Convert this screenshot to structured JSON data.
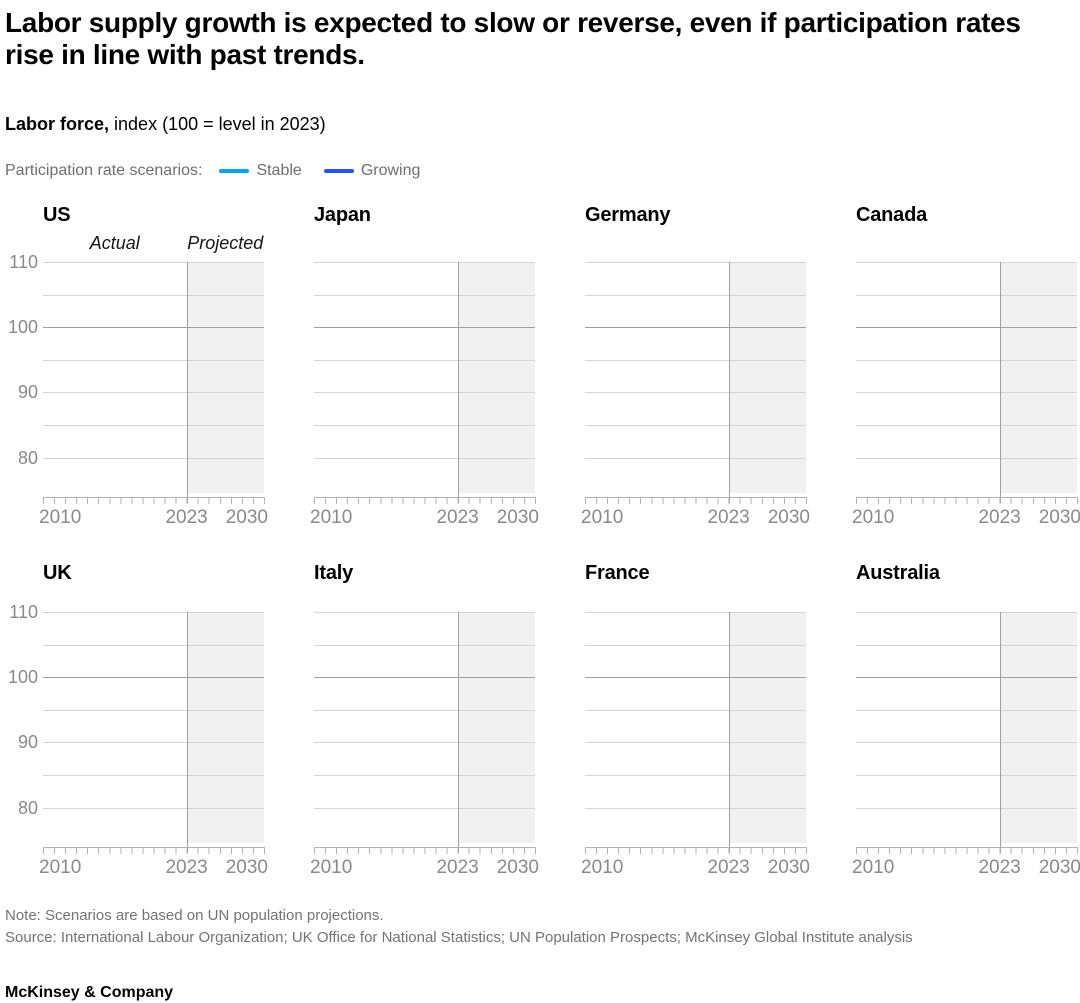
{
  "title": "Labor supply growth is expected to slow or reverse, even if participation rates rise in line with past trends.",
  "subtitle": {
    "bold": "Labor force,",
    "rest": " index (100 = level in 2023)"
  },
  "legend": {
    "label": "Participation rate scenarios:",
    "items": [
      {
        "name": "Stable",
        "color": "#00a9f4"
      },
      {
        "name": "Growing",
        "color": "#2251ff"
      }
    ]
  },
  "annotations": {
    "actual": "Actual",
    "projected": "Projected"
  },
  "panels": [
    "US",
    "Japan",
    "Germany",
    "Canada",
    "UK",
    "Italy",
    "France",
    "Australia"
  ],
  "axis": {
    "y_ticks": [
      "110",
      "100",
      "90",
      "80"
    ],
    "x_ticks": [
      "2010",
      "2023",
      "2030"
    ]
  },
  "footer": {
    "note": "Note: Scenarios are based on UN population projections.",
    "source": "Source: International Labour Organization; UK Office for National Statistics; UN Population Prospects; McKinsey Global Institute analysis",
    "brand": "McKinsey & Company"
  },
  "chart_data": {
    "type": "line",
    "layout": "small-multiples, 2 rows x 4 columns",
    "panels": [
      "US",
      "Japan",
      "Germany",
      "Canada",
      "UK",
      "Italy",
      "France",
      "Australia"
    ],
    "title": "Labor force, index (100 = level in 2023)",
    "x": {
      "range": [
        2010,
        2030
      ],
      "tick_labels": [
        2010,
        2023,
        2030
      ],
      "minor_tick_interval_years": 1
    },
    "y": {
      "range": [
        74.5,
        110
      ],
      "gridlines": [
        80,
        85,
        90,
        95,
        100,
        105,
        110
      ],
      "tick_labels": [
        80,
        90,
        100,
        110
      ],
      "emphasized_gridline": 100
    },
    "actual_span": {
      "from": 2010,
      "to": 2023,
      "label": "Actual"
    },
    "projected_span": {
      "from": 2023,
      "to": 2030,
      "label": "Projected",
      "fill": "#f1f1f1"
    },
    "series": [
      {
        "name": "Stable",
        "color": "#00a9f4",
        "points_visible": false
      },
      {
        "name": "Growing",
        "color": "#2251ff",
        "points_visible": false
      }
    ],
    "note": "In this frame every panel shows only axes, gridlines and the shaded 2023-2030 projection band; no scenario data lines are drawn."
  }
}
